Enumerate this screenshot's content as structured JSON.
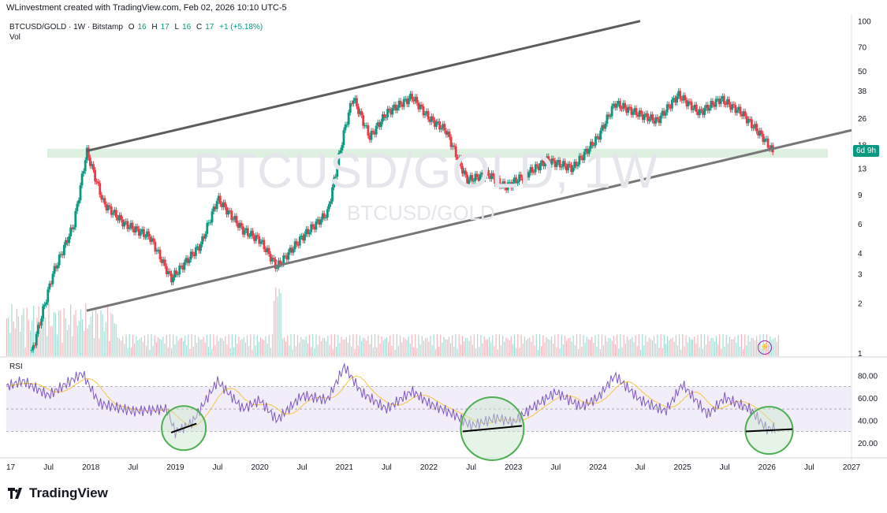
{
  "header": {
    "credit": "WLinvestment created with TradingView.com, Feb 02, 2026 10:10 UTC-5"
  },
  "legend": {
    "symbol": "BTCUSD/GOLD · 1W · Bitstamp",
    "o_label": "O",
    "o_val": "16",
    "h_label": "H",
    "h_val": "17",
    "l_label": "L",
    "l_val": "16",
    "c_label": "C",
    "c_val": "17",
    "change": "+1 (+5.18%)",
    "vol": "Vol"
  },
  "rsi_label": "RSI",
  "watermark": {
    "main": "BTCUSD/GOLD, 1W",
    "sub": "BTCUSD/GOLD"
  },
  "price_tag": "6d 9h",
  "branding": "TradingView",
  "colors": {
    "up": "#089981",
    "down": "#f23645",
    "rsi": "#7e57c2",
    "rsi_ma": "#f5c542",
    "channel": "#666666",
    "zone": "#c8e6c9"
  },
  "icons": {
    "bolt": "lightning-icon"
  },
  "chart_data": [
    {
      "type": "candlestick",
      "title": "BTCUSD/GOLD · 1W · Bitstamp",
      "y_scale": "log",
      "y_ticks": [
        100,
        70,
        50,
        38,
        26,
        18,
        13,
        9,
        6,
        4,
        3,
        2,
        1
      ],
      "x_ticks": [
        "17",
        "Jul",
        "2018",
        "Jul",
        "2019",
        "Jul",
        "2020",
        "Jul",
        "2021",
        "Jul",
        "2022",
        "Jul",
        "2023",
        "Jul",
        "2024",
        "Jul",
        "2025",
        "Jul",
        "2026",
        "Jul",
        "2027"
      ],
      "x_range": [
        2017.0,
        2027.0
      ],
      "series": [
        {
          "x": [
            2017.3,
            2017.55,
            2017.8,
            2017.95,
            2018.15,
            2018.4,
            2018.7,
            2018.95,
            2019.3,
            2019.5,
            2019.8,
            2020.0,
            2020.2,
            2020.5,
            2020.8,
            2021.0,
            2021.1,
            2021.3,
            2021.5,
            2021.8,
            2022.0,
            2022.2,
            2022.45,
            2022.7,
            2022.9,
            2023.1,
            2023.4,
            2023.7,
            2024.0,
            2024.2,
            2024.45,
            2024.7,
            2024.95,
            2025.2,
            2025.45,
            2025.7,
            2025.95,
            2026.08
          ],
          "y": [
            1.0,
            3.0,
            6.0,
            16.5,
            8.0,
            6.0,
            5.0,
            2.8,
            4.5,
            8.5,
            5.5,
            4.8,
            3.3,
            5.0,
            7.0,
            22.0,
            35.0,
            20.0,
            28.0,
            35.0,
            26.0,
            22.0,
            11.0,
            12.0,
            10.0,
            11.5,
            14.5,
            13.0,
            20.0,
            32.0,
            28.0,
            25.0,
            36.0,
            28.0,
            34.0,
            28.0,
            20.0,
            16.0
          ]
        }
      ],
      "channel": {
        "upper": [
          [
            2017.95,
            16.5
          ],
          [
            2024.5,
            100.0
          ]
        ],
        "lower": [
          [
            2017.95,
            1.8
          ],
          [
            2027.0,
            22.0
          ]
        ]
      },
      "zone": [
        15.0,
        17.0
      ]
    },
    {
      "type": "line",
      "title": "RSI",
      "y_ticks": [
        80,
        60,
        40,
        20
      ],
      "band": [
        30,
        70
      ],
      "series": [
        {
          "x": [
            2017.0,
            2017.2,
            2017.5,
            2017.9,
            2018.1,
            2018.5,
            2018.9,
            2019.0,
            2019.2,
            2019.5,
            2019.8,
            2020.0,
            2020.2,
            2020.5,
            2020.8,
            2021.0,
            2021.2,
            2021.5,
            2021.8,
            2022.0,
            2022.3,
            2022.5,
            2022.8,
            2023.0,
            2023.2,
            2023.5,
            2023.8,
            2024.0,
            2024.2,
            2024.5,
            2024.8,
            2025.0,
            2025.3,
            2025.5,
            2025.8,
            2026.0,
            2026.1
          ],
          "y": [
            70,
            75,
            62,
            82,
            55,
            48,
            50,
            29,
            38,
            75,
            50,
            58,
            40,
            62,
            58,
            88,
            65,
            50,
            66,
            55,
            45,
            35,
            42,
            38,
            50,
            65,
            52,
            60,
            80,
            58,
            48,
            72,
            45,
            60,
            50,
            32,
            33
          ]
        }
      ]
    }
  ]
}
